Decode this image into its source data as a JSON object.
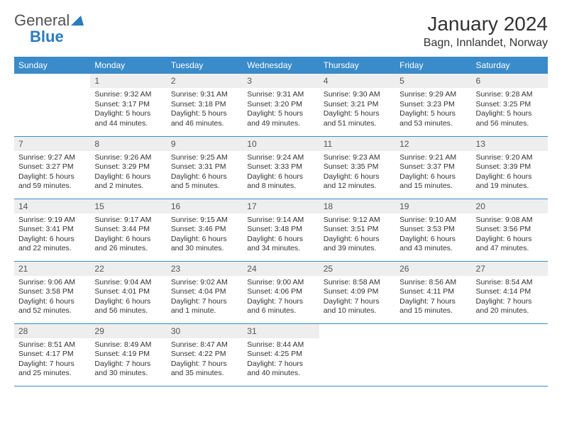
{
  "logo": {
    "general": "General",
    "blue": "Blue"
  },
  "title": "January 2024",
  "subtitle": "Bagn, Innlandet, Norway",
  "colors": {
    "header_bg": "#3a8bc9",
    "header_text": "#ffffff",
    "daynum_bg": "#eeeeee",
    "border": "#3a8bc9",
    "logo_gray": "#545454",
    "logo_blue": "#2b7bbf"
  },
  "weekdays": [
    "Sunday",
    "Monday",
    "Tuesday",
    "Wednesday",
    "Thursday",
    "Friday",
    "Saturday"
  ],
  "weeks": [
    [
      null,
      {
        "n": "1",
        "sr": "Sunrise: 9:32 AM",
        "ss": "Sunset: 3:17 PM",
        "dl": "Daylight: 5 hours and 44 minutes."
      },
      {
        "n": "2",
        "sr": "Sunrise: 9:31 AM",
        "ss": "Sunset: 3:18 PM",
        "dl": "Daylight: 5 hours and 46 minutes."
      },
      {
        "n": "3",
        "sr": "Sunrise: 9:31 AM",
        "ss": "Sunset: 3:20 PM",
        "dl": "Daylight: 5 hours and 49 minutes."
      },
      {
        "n": "4",
        "sr": "Sunrise: 9:30 AM",
        "ss": "Sunset: 3:21 PM",
        "dl": "Daylight: 5 hours and 51 minutes."
      },
      {
        "n": "5",
        "sr": "Sunrise: 9:29 AM",
        "ss": "Sunset: 3:23 PM",
        "dl": "Daylight: 5 hours and 53 minutes."
      },
      {
        "n": "6",
        "sr": "Sunrise: 9:28 AM",
        "ss": "Sunset: 3:25 PM",
        "dl": "Daylight: 5 hours and 56 minutes."
      }
    ],
    [
      {
        "n": "7",
        "sr": "Sunrise: 9:27 AM",
        "ss": "Sunset: 3:27 PM",
        "dl": "Daylight: 5 hours and 59 minutes."
      },
      {
        "n": "8",
        "sr": "Sunrise: 9:26 AM",
        "ss": "Sunset: 3:29 PM",
        "dl": "Daylight: 6 hours and 2 minutes."
      },
      {
        "n": "9",
        "sr": "Sunrise: 9:25 AM",
        "ss": "Sunset: 3:31 PM",
        "dl": "Daylight: 6 hours and 5 minutes."
      },
      {
        "n": "10",
        "sr": "Sunrise: 9:24 AM",
        "ss": "Sunset: 3:33 PM",
        "dl": "Daylight: 6 hours and 8 minutes."
      },
      {
        "n": "11",
        "sr": "Sunrise: 9:23 AM",
        "ss": "Sunset: 3:35 PM",
        "dl": "Daylight: 6 hours and 12 minutes."
      },
      {
        "n": "12",
        "sr": "Sunrise: 9:21 AM",
        "ss": "Sunset: 3:37 PM",
        "dl": "Daylight: 6 hours and 15 minutes."
      },
      {
        "n": "13",
        "sr": "Sunrise: 9:20 AM",
        "ss": "Sunset: 3:39 PM",
        "dl": "Daylight: 6 hours and 19 minutes."
      }
    ],
    [
      {
        "n": "14",
        "sr": "Sunrise: 9:19 AM",
        "ss": "Sunset: 3:41 PM",
        "dl": "Daylight: 6 hours and 22 minutes."
      },
      {
        "n": "15",
        "sr": "Sunrise: 9:17 AM",
        "ss": "Sunset: 3:44 PM",
        "dl": "Daylight: 6 hours and 26 minutes."
      },
      {
        "n": "16",
        "sr": "Sunrise: 9:15 AM",
        "ss": "Sunset: 3:46 PM",
        "dl": "Daylight: 6 hours and 30 minutes."
      },
      {
        "n": "17",
        "sr": "Sunrise: 9:14 AM",
        "ss": "Sunset: 3:48 PM",
        "dl": "Daylight: 6 hours and 34 minutes."
      },
      {
        "n": "18",
        "sr": "Sunrise: 9:12 AM",
        "ss": "Sunset: 3:51 PM",
        "dl": "Daylight: 6 hours and 39 minutes."
      },
      {
        "n": "19",
        "sr": "Sunrise: 9:10 AM",
        "ss": "Sunset: 3:53 PM",
        "dl": "Daylight: 6 hours and 43 minutes."
      },
      {
        "n": "20",
        "sr": "Sunrise: 9:08 AM",
        "ss": "Sunset: 3:56 PM",
        "dl": "Daylight: 6 hours and 47 minutes."
      }
    ],
    [
      {
        "n": "21",
        "sr": "Sunrise: 9:06 AM",
        "ss": "Sunset: 3:58 PM",
        "dl": "Daylight: 6 hours and 52 minutes."
      },
      {
        "n": "22",
        "sr": "Sunrise: 9:04 AM",
        "ss": "Sunset: 4:01 PM",
        "dl": "Daylight: 6 hours and 56 minutes."
      },
      {
        "n": "23",
        "sr": "Sunrise: 9:02 AM",
        "ss": "Sunset: 4:04 PM",
        "dl": "Daylight: 7 hours and 1 minute."
      },
      {
        "n": "24",
        "sr": "Sunrise: 9:00 AM",
        "ss": "Sunset: 4:06 PM",
        "dl": "Daylight: 7 hours and 6 minutes."
      },
      {
        "n": "25",
        "sr": "Sunrise: 8:58 AM",
        "ss": "Sunset: 4:09 PM",
        "dl": "Daylight: 7 hours and 10 minutes."
      },
      {
        "n": "26",
        "sr": "Sunrise: 8:56 AM",
        "ss": "Sunset: 4:11 PM",
        "dl": "Daylight: 7 hours and 15 minutes."
      },
      {
        "n": "27",
        "sr": "Sunrise: 8:54 AM",
        "ss": "Sunset: 4:14 PM",
        "dl": "Daylight: 7 hours and 20 minutes."
      }
    ],
    [
      {
        "n": "28",
        "sr": "Sunrise: 8:51 AM",
        "ss": "Sunset: 4:17 PM",
        "dl": "Daylight: 7 hours and 25 minutes."
      },
      {
        "n": "29",
        "sr": "Sunrise: 8:49 AM",
        "ss": "Sunset: 4:19 PM",
        "dl": "Daylight: 7 hours and 30 minutes."
      },
      {
        "n": "30",
        "sr": "Sunrise: 8:47 AM",
        "ss": "Sunset: 4:22 PM",
        "dl": "Daylight: 7 hours and 35 minutes."
      },
      {
        "n": "31",
        "sr": "Sunrise: 8:44 AM",
        "ss": "Sunset: 4:25 PM",
        "dl": "Daylight: 7 hours and 40 minutes."
      },
      null,
      null,
      null
    ]
  ]
}
